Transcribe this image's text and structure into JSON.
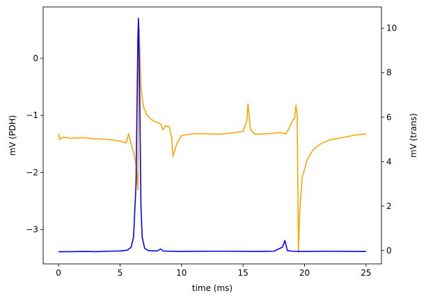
{
  "chart_data": {
    "type": "line",
    "title": "",
    "xlabel": "time (ms)",
    "ylabel_left": "mV (PDH)",
    "ylabel_right": "mV (trans)",
    "xlim": [
      -1.25,
      26.25
    ],
    "ylim_left": [
      -3.6,
      0.9
    ],
    "ylim_right": [
      -0.6,
      10.96
    ],
    "x_ticks": [
      0,
      5,
      10,
      15,
      20,
      25
    ],
    "y_left_ticks": [
      0,
      -1,
      -2,
      -3
    ],
    "y_right_ticks": [
      0,
      2,
      4,
      6,
      8,
      10
    ],
    "grid": false,
    "legend": "none",
    "series": [
      {
        "axis": "left",
        "color": "#ffa500",
        "points": [
          [
            0,
            -1.32
          ],
          [
            0.1,
            -1.42
          ],
          [
            0.3,
            -1.38
          ],
          [
            1,
            -1.4
          ],
          [
            2,
            -1.39
          ],
          [
            3,
            -1.41
          ],
          [
            4,
            -1.42
          ],
          [
            5,
            -1.45
          ],
          [
            5.5,
            -1.48
          ],
          [
            5.7,
            -1.32
          ],
          [
            5.9,
            -1.5
          ],
          [
            6.1,
            -1.65
          ],
          [
            6.3,
            -1.85
          ],
          [
            6.45,
            -2.3
          ],
          [
            6.55,
            0.55
          ],
          [
            6.7,
            -0.5
          ],
          [
            6.9,
            -0.85
          ],
          [
            7.2,
            -1.0
          ],
          [
            7.6,
            -1.08
          ],
          [
            8.0,
            -1.12
          ],
          [
            8.3,
            -1.15
          ],
          [
            8.5,
            -1.25
          ],
          [
            8.7,
            -1.18
          ],
          [
            9.0,
            -1.2
          ],
          [
            9.2,
            -1.4
          ],
          [
            9.3,
            -1.72
          ],
          [
            9.6,
            -1.5
          ],
          [
            10,
            -1.35
          ],
          [
            11,
            -1.32
          ],
          [
            12,
            -1.32
          ],
          [
            13,
            -1.33
          ],
          [
            14,
            -1.31
          ],
          [
            15,
            -1.28
          ],
          [
            15.3,
            -1.1
          ],
          [
            15.4,
            -0.8
          ],
          [
            15.6,
            -1.25
          ],
          [
            16,
            -1.33
          ],
          [
            17,
            -1.32
          ],
          [
            18,
            -1.3
          ],
          [
            18.5,
            -1.32
          ],
          [
            18.8,
            -1.2
          ],
          [
            19.0,
            -1.1
          ],
          [
            19.2,
            -1.05
          ],
          [
            19.3,
            -0.82
          ],
          [
            19.4,
            -1.0
          ],
          [
            19.5,
            -3.4
          ],
          [
            19.6,
            -2.7
          ],
          [
            19.8,
            -2.1
          ],
          [
            20.2,
            -1.78
          ],
          [
            20.7,
            -1.6
          ],
          [
            21.3,
            -1.5
          ],
          [
            22,
            -1.43
          ],
          [
            23,
            -1.39
          ],
          [
            24,
            -1.35
          ],
          [
            25,
            -1.32
          ]
        ]
      },
      {
        "axis": "right",
        "color": "#0000ff",
        "points": [
          [
            0,
            -0.05
          ],
          [
            1,
            -0.05
          ],
          [
            2,
            -0.04
          ],
          [
            3,
            -0.05
          ],
          [
            4,
            -0.03
          ],
          [
            5,
            -0.02
          ],
          [
            5.6,
            0.02
          ],
          [
            5.9,
            0.15
          ],
          [
            6.1,
            0.6
          ],
          [
            6.3,
            3.0
          ],
          [
            6.45,
            9.5
          ],
          [
            6.5,
            10.45
          ],
          [
            6.6,
            7.0
          ],
          [
            6.7,
            2.0
          ],
          [
            6.8,
            0.6
          ],
          [
            7.0,
            0.1
          ],
          [
            7.3,
            0.0
          ],
          [
            8.0,
            -0.02
          ],
          [
            8.3,
            0.07
          ],
          [
            8.5,
            -0.02
          ],
          [
            9,
            -0.03
          ],
          [
            10,
            -0.04
          ],
          [
            12,
            -0.03
          ],
          [
            14,
            -0.03
          ],
          [
            16,
            -0.04
          ],
          [
            17.5,
            -0.03
          ],
          [
            18.2,
            0.15
          ],
          [
            18.4,
            0.45
          ],
          [
            18.6,
            0.0
          ],
          [
            19,
            -0.03
          ],
          [
            20,
            -0.04
          ],
          [
            22,
            -0.03
          ],
          [
            24,
            -0.04
          ],
          [
            25,
            -0.04
          ]
        ]
      }
    ]
  }
}
